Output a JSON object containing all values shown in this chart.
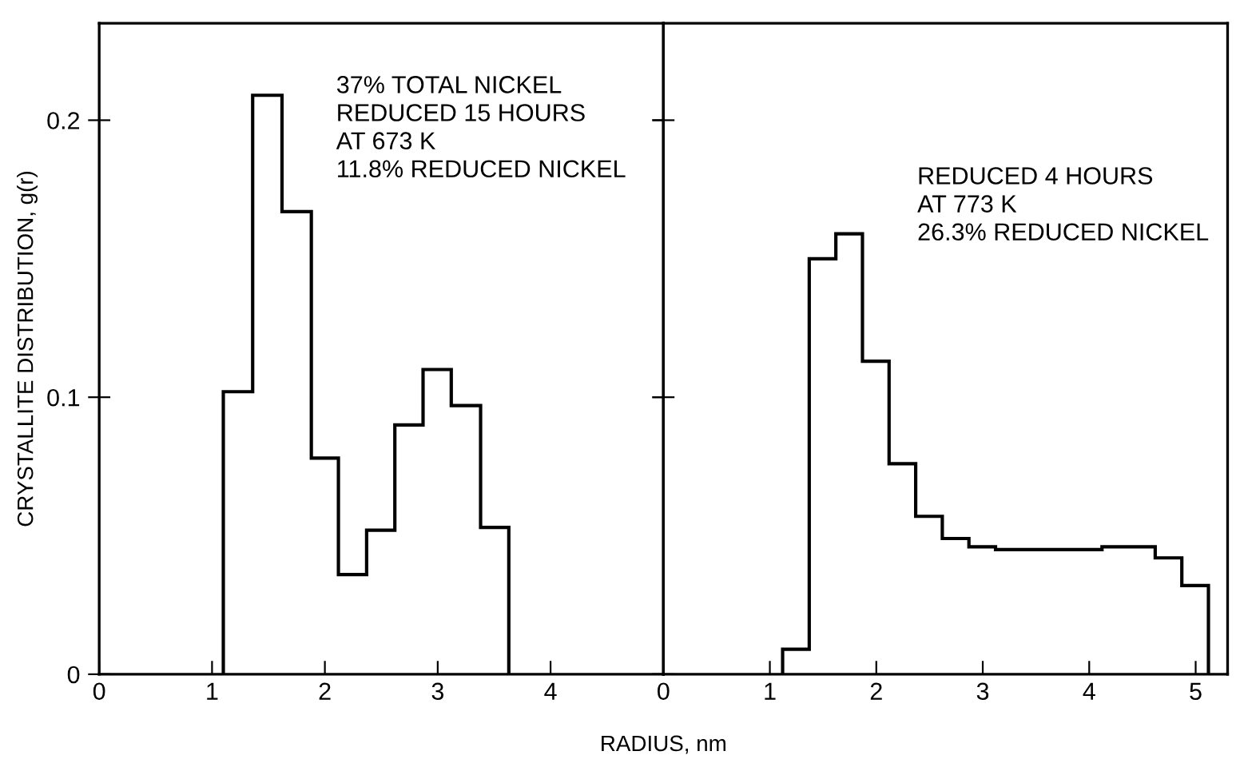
{
  "chart_data": [
    {
      "type": "histogram",
      "ylabel": "CRYSTALLITE DISTRIBUTION, g(r)",
      "xlabel": "RADIUS, nm",
      "bins": [
        1.1,
        1.36,
        1.62,
        1.88,
        2.12,
        2.37,
        2.62,
        2.87,
        3.12,
        3.38,
        3.63
      ],
      "values": [
        0.102,
        0.209,
        0.167,
        0.078,
        0.036,
        0.052,
        0.09,
        0.11,
        0.097,
        0.053
      ],
      "color": "#000000",
      "xlim": [
        0,
        5
      ],
      "xticks": [
        0,
        1,
        2,
        3,
        4
      ],
      "ylim": [
        0,
        0.235
      ],
      "yticks": [
        0,
        0.1,
        0.2
      ],
      "grid": false,
      "annotations": [
        "37% TOTAL NICKEL\nREDUCED 15 HOURS\nAT 673 K\n11.8% REDUCED NICKEL"
      ]
    },
    {
      "type": "histogram",
      "bins": [
        1.12,
        1.37,
        1.62,
        1.87,
        2.12,
        2.37,
        2.62,
        2.87,
        3.12,
        3.37,
        3.62,
        3.87,
        4.12,
        4.37,
        4.62,
        4.87,
        5.12
      ],
      "values": [
        0.009,
        0.15,
        0.159,
        0.113,
        0.076,
        0.057,
        0.049,
        0.046,
        0.045,
        0.045,
        0.045,
        0.045,
        0.046,
        0.046,
        0.042,
        0.032
      ],
      "color": "#000000",
      "xlim": [
        0,
        5.3
      ],
      "xticks": [
        0,
        1,
        2,
        3,
        4,
        5
      ],
      "ylim": [
        0,
        0.235
      ],
      "yticks": [
        0,
        0.1,
        0.2
      ],
      "grid": false,
      "tick_labels": "x",
      "annotations": [
        "REDUCED 4 HOURS\nAT 773 K\n26.3% REDUCED NICKEL"
      ]
    }
  ]
}
